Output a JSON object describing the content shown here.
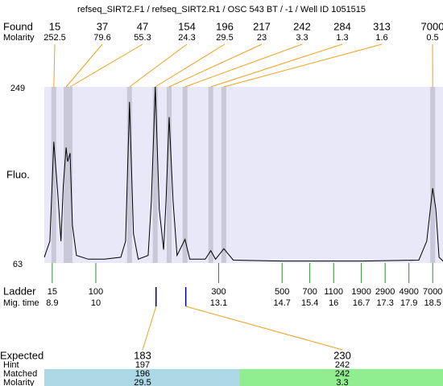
{
  "chart_data": {
    "type": "electropherogram",
    "title": "refseq_SIRT2.F1 / refseq_SIRT2.R1 / OSC 543 BT / -1 / Well ID 1051515",
    "y_label": "Fluo.",
    "ylim": [
      63,
      249
    ],
    "yticks": [
      249,
      63
    ],
    "xlim": [
      8.7,
      18.76
    ],
    "trace": {
      "color": "#000000",
      "x": [
        8.7,
        8.84,
        8.94,
        9.04,
        9.12,
        9.18,
        9.25,
        9.29,
        9.35,
        9.41,
        9.51,
        9.81,
        10.22,
        10.63,
        10.75,
        10.85,
        10.95,
        11.07,
        11.32,
        11.4,
        11.5,
        11.6,
        11.71,
        11.77,
        11.85,
        11.95,
        12.05,
        12.25,
        12.37,
        12.76,
        12.9,
        13.02,
        13.23,
        13.47,
        14.69,
        16.72,
        18.15,
        18.35,
        18.5,
        18.58,
        18.66,
        18.76
      ],
      "y": [
        69,
        86,
        191,
        137,
        86,
        145,
        185,
        170,
        179,
        103,
        71,
        67,
        67,
        69,
        86,
        233,
        94,
        67,
        71,
        128,
        249,
        120,
        77,
        128,
        217,
        128,
        71,
        88,
        67,
        67,
        76,
        67,
        78,
        66,
        65,
        65,
        66,
        86,
        142,
        120,
        69,
        65
      ]
    },
    "found": {
      "label": "Found",
      "molarity_label": "Molarity",
      "line_color": "#f0a020",
      "band_color": "#c8c8d8",
      "sizes": [
        15,
        37,
        47,
        154,
        196,
        217,
        242,
        284,
        313,
        7000
      ],
      "molarity": [
        252.5,
        79.6,
        55.3,
        24.3,
        29.5,
        23,
        3.3,
        1.3,
        1.6,
        0.5
      ],
      "times": [
        8.94,
        9.25,
        9.35,
        10.85,
        11.5,
        11.85,
        12.25,
        12.9,
        13.23,
        18.5
      ]
    },
    "ladder": {
      "label": "Ladder",
      "time_label": "Mig. time",
      "color": "#2e8b2e",
      "sizes": [
        15,
        100,
        300,
        500,
        700,
        1100,
        1900,
        2900,
        4900,
        7000
      ],
      "times": [
        8.9,
        10,
        13.1,
        14.7,
        15.4,
        16,
        16.7,
        17.3,
        17.9,
        18.5
      ]
    },
    "expected": {
      "labels": [
        "Expected",
        "Hint",
        "Matched",
        "Molarity"
      ],
      "mark_color": "#000080",
      "values": [
        183,
        230
      ],
      "hint": [
        197,
        242
      ],
      "matched": [
        196,
        242
      ],
      "molarity": [
        29.5,
        3.3
      ],
      "times": [
        11.52,
        12.27
      ],
      "colors": [
        "#add8e6",
        "#90ee90"
      ]
    }
  }
}
